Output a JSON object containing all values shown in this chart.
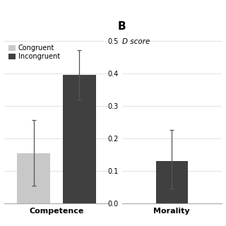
{
  "left_panel": {
    "bar1_label": "Congruent",
    "bar2_label": "Incongruent",
    "bar1_value": 0.155,
    "bar2_value": 0.395,
    "bar1_error": 0.1,
    "bar2_error": 0.075,
    "bar1_color": "#c8c8c8",
    "bar2_color": "#404040",
    "ylim": [
      0,
      0.5
    ],
    "yticks": [
      0.1,
      0.2,
      0.3,
      0.4,
      0.5
    ],
    "xlabel": "Competence"
  },
  "right_panel": {
    "panel_label": "B",
    "ylabel": "D score",
    "bar_value": 0.13,
    "bar_error_upper": 0.095,
    "bar_error_lower": 0.085,
    "bar_color": "#404040",
    "ylim": [
      0,
      0.5
    ],
    "yticks": [
      0,
      0.1,
      0.2,
      0.3,
      0.4,
      0.5
    ],
    "xlabel": "Morality"
  },
  "background_color": "#ffffff",
  "legend_labels": [
    "Congruent",
    "Incongruent"
  ],
  "legend_colors": [
    "#c8c8c8",
    "#404040"
  ]
}
